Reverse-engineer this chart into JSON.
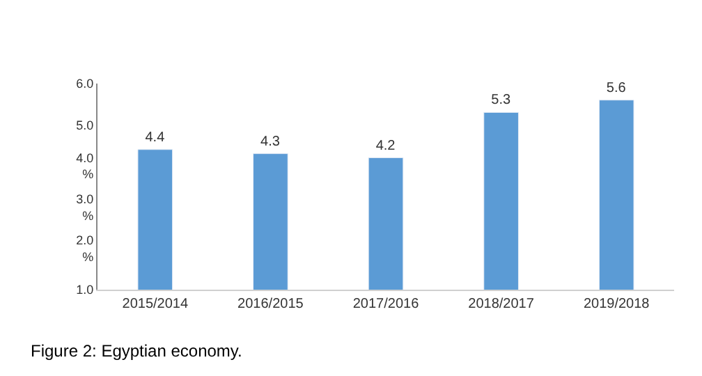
{
  "chart_data": {
    "type": "bar",
    "categories": [
      "2015/2014",
      "2016/2015",
      "2017/2016",
      "2018/2017",
      "2019/2018"
    ],
    "values": [
      4.4,
      4.3,
      4.2,
      5.3,
      5.6
    ],
    "color": "#5b9bd5",
    "ylim": [
      1.0,
      6.0
    ],
    "yticks": [
      {
        "value": 1.0,
        "label": "1.0"
      },
      {
        "value": 2.0,
        "label": "2.0\n%"
      },
      {
        "value": 3.0,
        "label": "3.0\n%"
      },
      {
        "value": 4.0,
        "label": "4.0\n%"
      },
      {
        "value": 5.0,
        "label": "5.0"
      },
      {
        "value": 6.0,
        "label": "6.0"
      }
    ],
    "data_labels": true,
    "annotations": [
      "Figure 2: Egyptian economy."
    ]
  }
}
